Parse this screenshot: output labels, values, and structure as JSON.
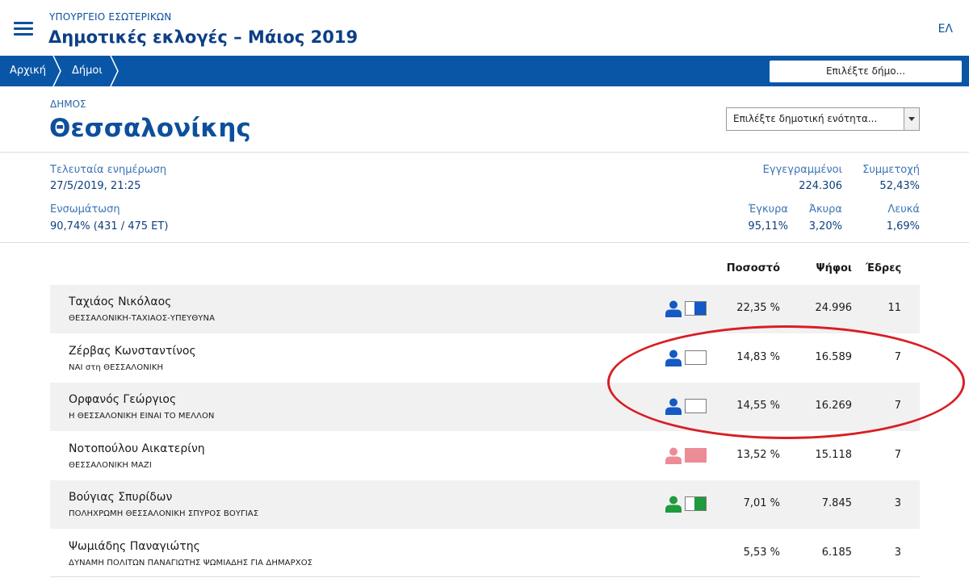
{
  "header": {
    "ministry": "ΥΠΟΥΡΓΕΙΟ ΕΣΩΤΕΡΙΚΩΝ",
    "title": "Δημοτικές εκλογές – Μάιος 2019",
    "language": "ΕΛ",
    "menu_icon": "hamburger-menu-icon"
  },
  "navbar": {
    "breadcrumbs": [
      "Αρχική",
      "Δήμοι"
    ],
    "municipality_select_placeholder": "Επιλέξτε δήμο...",
    "background_color": "#0a56a6"
  },
  "municipality": {
    "label": "ΔΗΜΟΣ",
    "name": "Θεσσαλονίκης",
    "unit_select_placeholder": "Επιλέξτε δημοτική ενότητα..."
  },
  "stats": {
    "last_update_label": "Τελευταία ενημέρωση",
    "last_update_value": "27/5/2019, 21:25",
    "integration_label": "Ενσωμάτωση",
    "integration_value": "90,74% (431 / 475 ΕΤ)",
    "registered_label": "Εγγεγραμμένοι",
    "registered_value": "224.306",
    "turnout_label": "Συμμετοχή",
    "turnout_value": "52,43%",
    "valid_label": "Έγκυρα",
    "valid_value": "95,11%",
    "invalid_label": "Άκυρα",
    "invalid_value": "3,20%",
    "blank_label": "Λευκά",
    "blank_value": "1,69%"
  },
  "results": {
    "columns": {
      "percent": "Ποσοστό",
      "votes": "Ψήφοι",
      "seats": "Έδρες"
    },
    "rows": [
      {
        "name": "Ταχιάος Νικόλαος",
        "party": "ΘΕΣΣΑΛΟΝΙΚΗ-ΤΑΧΙΑΟΣ-ΥΠΕΥΘΥΝΑ",
        "percent": "22,35 %",
        "votes": "24.996",
        "seats": "11",
        "color": "#1459c4",
        "flag_fill": "right",
        "shaded": true
      },
      {
        "name": "Ζέρβας Κωνσταντίνος",
        "party": "ΝΑΙ στη ΘΕΣΣΑΛΟΝΙΚΗ",
        "percent": "14,83 %",
        "votes": "16.589",
        "seats": "7",
        "color": "#1459c4",
        "flag_fill": "none",
        "shaded": false
      },
      {
        "name": "Ορφανός Γεώργιος",
        "party": "Η ΘΕΣΣΑΛΟΝΙΚΗ ΕΙΝΑΙ ΤΟ ΜΕΛΛΟΝ",
        "percent": "14,55 %",
        "votes": "16.269",
        "seats": "7",
        "color": "#1459c4",
        "flag_fill": "none",
        "shaded": true
      },
      {
        "name": "Νοτοπούλου Αικατερίνη",
        "party": "ΘΕΣΣΑΛΟΝΙΚΗ ΜΑΖΙ",
        "percent": "13,52 %",
        "votes": "15.118",
        "seats": "7",
        "color": "#eb8c97",
        "flag_fill": "full",
        "shaded": false
      },
      {
        "name": "Βούγιας Σπυρίδων",
        "party": "ΠΟΛΗΧΡΩΜΗ ΘΕΣΣΑΛΟΝΙΚΗ ΣΠΥΡΟΣ ΒΟΥΓΙΑΣ",
        "percent": "7,01 %",
        "votes": "7.845",
        "seats": "3",
        "color": "#1f9a3c",
        "flag_fill": "right",
        "shaded": true
      },
      {
        "name": "Ψωμιάδης Παναγιώτης",
        "party": "ΔΥΝΑΜΗ ΠΟΛΙΤΩΝ ΠΑΝΑΓΙΩΤΗΣ ΨΩΜΙΑΔΗΣ ΓΙΑ ΔΗΜΑΡΧΟΣ",
        "percent": "5,53 %",
        "votes": "6.185",
        "seats": "3",
        "color": "#ffffff",
        "flag_fill": "none",
        "shaded": false
      }
    ]
  },
  "annotation": {
    "color": "#d81e24"
  }
}
